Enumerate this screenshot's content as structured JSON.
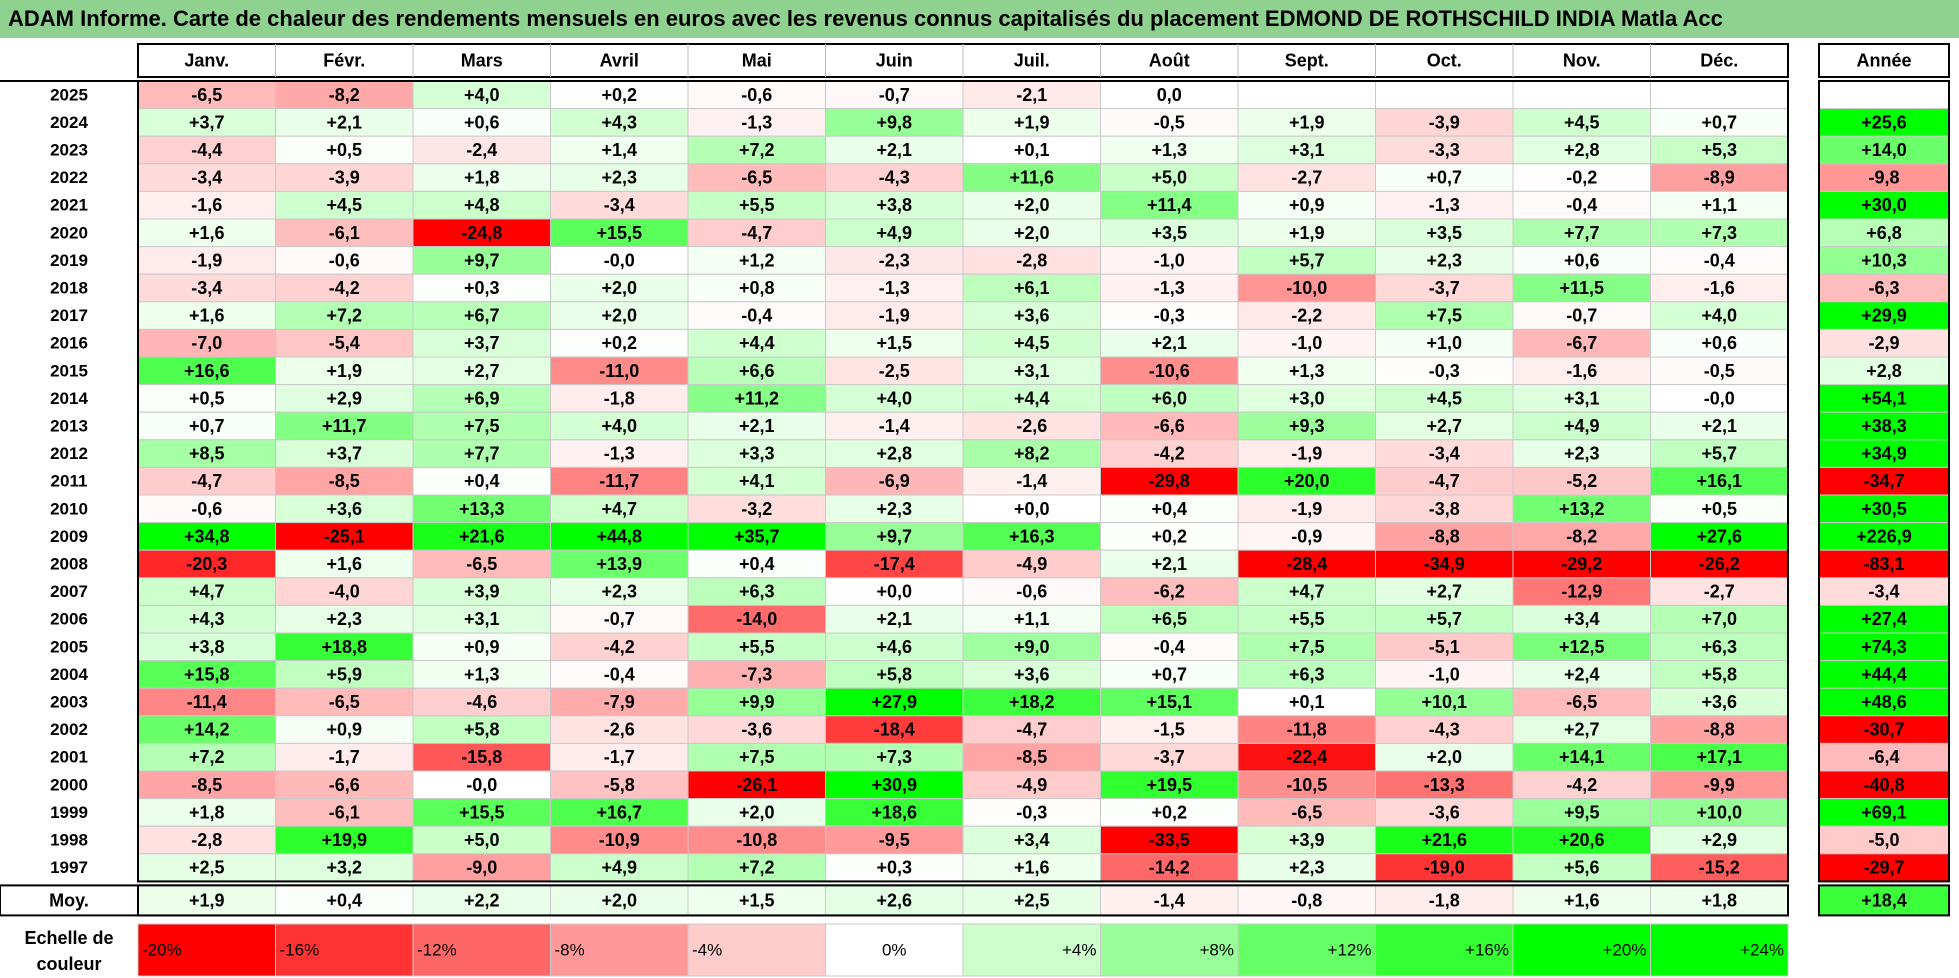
{
  "title": "ADAM Informe. Carte de chaleur des rendements mensuels en euros avec les revenus connus capitalisés du placement EDMOND DE ROTHSCHILD INDIA Matla Acc",
  "chart_data": {
    "type": "heatmap",
    "columns": [
      "Janv.",
      "Févr.",
      "Mars",
      "Avril",
      "Mai",
      "Juin",
      "Juil.",
      "Août",
      "Sept.",
      "Oct.",
      "Nov.",
      "Déc."
    ],
    "year_header": "Année",
    "rows": [
      {
        "label": "2025",
        "values": [
          "-6,5",
          "-8,2",
          "+4,0",
          "+0,2",
          "-0,6",
          "-0,7",
          "-2,1",
          "0,0",
          "",
          "",
          "",
          ""
        ],
        "year": ""
      },
      {
        "label": "2024",
        "values": [
          "+3,7",
          "+2,1",
          "+0,6",
          "+4,3",
          "-1,3",
          "+9,8",
          "+1,9",
          "-0,5",
          "+1,9",
          "-3,9",
          "+4,5",
          "+0,7"
        ],
        "year": "+25,6"
      },
      {
        "label": "2023",
        "values": [
          "-4,4",
          "+0,5",
          "-2,4",
          "+1,4",
          "+7,2",
          "+2,1",
          "+0,1",
          "+1,3",
          "+3,1",
          "-3,3",
          "+2,8",
          "+5,3"
        ],
        "year": "+14,0"
      },
      {
        "label": "2022",
        "values": [
          "-3,4",
          "-3,9",
          "+1,8",
          "+2,3",
          "-6,5",
          "-4,3",
          "+11,6",
          "+5,0",
          "-2,7",
          "+0,7",
          "-0,2",
          "-8,9"
        ],
        "year": "-9,8"
      },
      {
        "label": "2021",
        "values": [
          "-1,6",
          "+4,5",
          "+4,8",
          "-3,4",
          "+5,5",
          "+3,8",
          "+2,0",
          "+11,4",
          "+0,9",
          "-1,3",
          "-0,4",
          "+1,1"
        ],
        "year": "+30,0"
      },
      {
        "label": "2020",
        "values": [
          "+1,6",
          "-6,1",
          "-24,8",
          "+15,5",
          "-4,7",
          "+4,9",
          "+2,0",
          "+3,5",
          "+1,9",
          "+3,5",
          "+7,7",
          "+7,3"
        ],
        "year": "+6,8"
      },
      {
        "label": "2019",
        "values": [
          "-1,9",
          "-0,6",
          "+9,7",
          "-0,0",
          "+1,2",
          "-2,3",
          "-2,8",
          "-1,0",
          "+5,7",
          "+2,3",
          "+0,6",
          "-0,4"
        ],
        "year": "+10,3"
      },
      {
        "label": "2018",
        "values": [
          "-3,4",
          "-4,2",
          "+0,3",
          "+2,0",
          "+0,8",
          "-1,3",
          "+6,1",
          "-1,3",
          "-10,0",
          "-3,7",
          "+11,5",
          "-1,6"
        ],
        "year": "-6,3"
      },
      {
        "label": "2017",
        "values": [
          "+1,6",
          "+7,2",
          "+6,7",
          "+2,0",
          "-0,4",
          "-1,9",
          "+3,6",
          "-0,3",
          "-2,2",
          "+7,5",
          "-0,7",
          "+4,0"
        ],
        "year": "+29,9"
      },
      {
        "label": "2016",
        "values": [
          "-7,0",
          "-5,4",
          "+3,7",
          "+0,2",
          "+4,4",
          "+1,5",
          "+4,5",
          "+2,1",
          "-1,0",
          "+1,0",
          "-6,7",
          "+0,6"
        ],
        "year": "-2,9"
      },
      {
        "label": "2015",
        "values": [
          "+16,6",
          "+1,9",
          "+2,7",
          "-11,0",
          "+6,6",
          "-2,5",
          "+3,1",
          "-10,6",
          "+1,3",
          "-0,3",
          "-1,6",
          "-0,5"
        ],
        "year": "+2,8"
      },
      {
        "label": "2014",
        "values": [
          "+0,5",
          "+2,9",
          "+6,9",
          "-1,8",
          "+11,2",
          "+4,0",
          "+4,4",
          "+6,0",
          "+3,0",
          "+4,5",
          "+3,1",
          "-0,0"
        ],
        "year": "+54,1"
      },
      {
        "label": "2013",
        "values": [
          "+0,7",
          "+11,7",
          "+7,5",
          "+4,0",
          "+2,1",
          "-1,4",
          "-2,6",
          "-6,6",
          "+9,3",
          "+2,7",
          "+4,9",
          "+2,1"
        ],
        "year": "+38,3"
      },
      {
        "label": "2012",
        "values": [
          "+8,5",
          "+3,7",
          "+7,7",
          "-1,3",
          "+3,3",
          "+2,8",
          "+8,2",
          "-4,2",
          "-1,9",
          "-3,4",
          "+2,3",
          "+5,7"
        ],
        "year": "+34,9"
      },
      {
        "label": "2011",
        "values": [
          "-4,7",
          "-8,5",
          "+0,4",
          "-11,7",
          "+4,1",
          "-6,9",
          "-1,4",
          "-29,8",
          "+20,0",
          "-4,7",
          "-5,2",
          "+16,1"
        ],
        "year": "-34,7"
      },
      {
        "label": "2010",
        "values": [
          "-0,6",
          "+3,6",
          "+13,3",
          "+4,7",
          "-3,2",
          "+2,3",
          "+0,0",
          "+0,4",
          "-1,9",
          "-3,8",
          "+13,2",
          "+0,5"
        ],
        "year": "+30,5"
      },
      {
        "label": "2009",
        "values": [
          "+34,8",
          "-25,1",
          "+21,6",
          "+44,8",
          "+35,7",
          "+9,7",
          "+16,3",
          "+0,2",
          "-0,9",
          "-8,8",
          "-8,2",
          "+27,6"
        ],
        "year": "+226,9"
      },
      {
        "label": "2008",
        "values": [
          "-20,3",
          "+1,6",
          "-6,5",
          "+13,9",
          "+0,4",
          "-17,4",
          "-4,9",
          "+2,1",
          "-28,4",
          "-34,9",
          "-29,2",
          "-26,2"
        ],
        "year": "-83,1"
      },
      {
        "label": "2007",
        "values": [
          "+4,7",
          "-4,0",
          "+3,9",
          "+2,3",
          "+6,3",
          "+0,0",
          "-0,6",
          "-6,2",
          "+4,7",
          "+2,7",
          "-12,9",
          "-2,7"
        ],
        "year": "-3,4"
      },
      {
        "label": "2006",
        "values": [
          "+4,3",
          "+2,3",
          "+3,1",
          "-0,7",
          "-14,0",
          "+2,1",
          "+1,1",
          "+6,5",
          "+5,5",
          "+5,7",
          "+3,4",
          "+7,0"
        ],
        "year": "+27,4"
      },
      {
        "label": "2005",
        "values": [
          "+3,8",
          "+18,8",
          "+0,9",
          "-4,2",
          "+5,5",
          "+4,6",
          "+9,0",
          "-0,4",
          "+7,5",
          "-5,1",
          "+12,5",
          "+6,3"
        ],
        "year": "+74,3"
      },
      {
        "label": "2004",
        "values": [
          "+15,8",
          "+5,9",
          "+1,3",
          "-0,4",
          "-7,3",
          "+5,8",
          "+3,6",
          "+0,7",
          "+6,3",
          "-1,0",
          "+2,4",
          "+5,8"
        ],
        "year": "+44,4"
      },
      {
        "label": "2003",
        "values": [
          "-11,4",
          "-6,5",
          "-4,6",
          "-7,9",
          "+9,9",
          "+27,9",
          "+18,2",
          "+15,1",
          "+0,1",
          "+10,1",
          "-6,5",
          "+3,6"
        ],
        "year": "+48,6"
      },
      {
        "label": "2002",
        "values": [
          "+14,2",
          "+0,9",
          "+5,8",
          "-2,6",
          "-3,6",
          "-18,4",
          "-4,7",
          "-1,5",
          "-11,8",
          "-4,3",
          "+2,7",
          "-8,8"
        ],
        "year": "-30,7"
      },
      {
        "label": "2001",
        "values": [
          "+7,2",
          "-1,7",
          "-15,8",
          "-1,7",
          "+7,5",
          "+7,3",
          "-8,5",
          "-3,7",
          "-22,4",
          "+2,0",
          "+14,1",
          "+17,1"
        ],
        "year": "-6,4"
      },
      {
        "label": "2000",
        "values": [
          "-8,5",
          "-6,6",
          "-0,0",
          "-5,8",
          "-26,1",
          "+30,9",
          "-4,9",
          "+19,5",
          "-10,5",
          "-13,3",
          "-4,2",
          "-9,9"
        ],
        "year": "-40,8"
      },
      {
        "label": "1999",
        "values": [
          "+1,8",
          "-6,1",
          "+15,5",
          "+16,7",
          "+2,0",
          "+18,6",
          "-0,3",
          "+0,2",
          "-6,5",
          "-3,6",
          "+9,5",
          "+10,0"
        ],
        "year": "+69,1"
      },
      {
        "label": "1998",
        "values": [
          "-2,8",
          "+19,9",
          "+5,0",
          "-10,9",
          "-10,8",
          "-9,5",
          "+3,4",
          "-33,5",
          "+3,9",
          "+21,6",
          "+20,6",
          "+2,9"
        ],
        "year": "-5,0"
      },
      {
        "label": "1997",
        "values": [
          "+2,5",
          "+3,2",
          "-9,0",
          "+4,9",
          "+7,2",
          "+0,3",
          "+1,6",
          "-14,2",
          "+2,3",
          "-19,0",
          "+5,6",
          "-15,2"
        ],
        "year": "-29,7"
      }
    ],
    "average": {
      "label": "Moy.",
      "values": [
        "+1,9",
        "+0,4",
        "+2,2",
        "+2,0",
        "+1,5",
        "+2,6",
        "+2,5",
        "-1,4",
        "-0,8",
        "-1,8",
        "+1,6",
        "+1,8"
      ],
      "year": "+18,4"
    },
    "legend": {
      "label_line1": "Echelle de",
      "label_line2": "couleur",
      "stops": [
        "-20%",
        "-16%",
        "-12%",
        "-8%",
        "-4%",
        "0%",
        "+4%",
        "+8%",
        "+12%",
        "+16%",
        "+20%",
        "+24%"
      ],
      "stop_values": [
        -20,
        -16,
        -12,
        -8,
        -4,
        0,
        4,
        8,
        12,
        16,
        20,
        24
      ]
    },
    "colors": {
      "negative": "#ff0000",
      "neutral": "#ffffff",
      "positive": "#00ff00",
      "title_bg": "#8fd18f"
    }
  }
}
